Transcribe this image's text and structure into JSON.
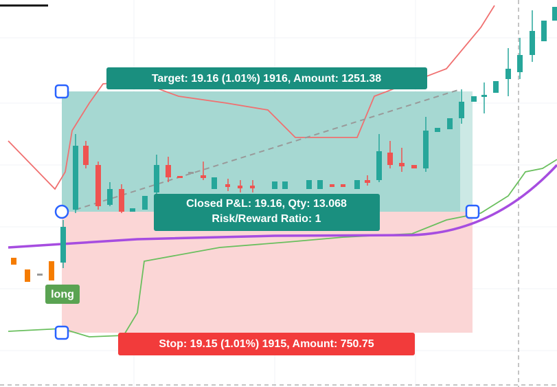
{
  "labels": {
    "target": "Target: 19.16 (1.01%) 1916, Amount: 1251.38",
    "closed": "Closed P&L: 19.16, Qty: 13.068",
    "ratio": "Risk/Reward Ratio: 1",
    "stop": "Stop: 19.15 (1.01%) 1915, Amount: 750.75",
    "side": "long"
  }
}
